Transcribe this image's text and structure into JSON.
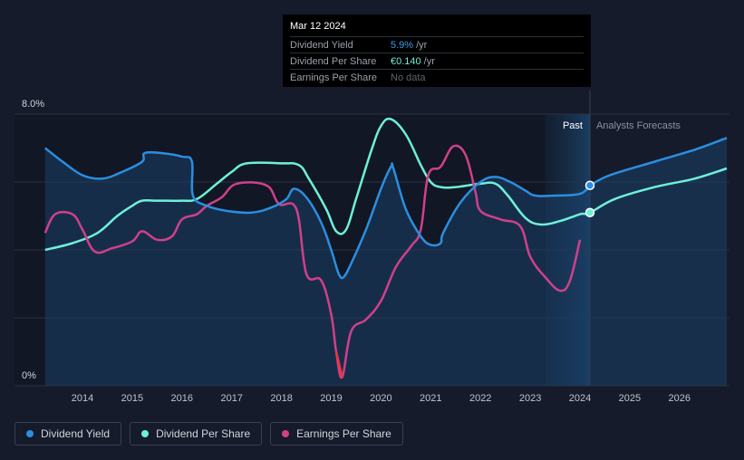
{
  "tooltip": {
    "date": "Mar 12 2024",
    "rows": [
      {
        "label": "Dividend Yield",
        "value": "5.9%",
        "unit": "/yr"
      },
      {
        "label": "Dividend Per Share",
        "value": "€0.140",
        "unit": "/yr"
      },
      {
        "label": "Earnings Per Share",
        "value": "No data",
        "unit": ""
      }
    ]
  },
  "legend": [
    {
      "label": "Dividend Yield",
      "color": "#2b8ee0"
    },
    {
      "label": "Dividend Per Share",
      "color": "#6ef0d8"
    },
    {
      "label": "Earnings Per Share",
      "color": "#d0408a"
    }
  ],
  "chart_data": {
    "type": "line",
    "y_axis": {
      "labels": [
        "8.0%",
        "0%"
      ],
      "range": [
        0,
        8
      ],
      "unit": "%"
    },
    "x_axis": {
      "ticks": [
        "2014",
        "2015",
        "2016",
        "2017",
        "2018",
        "2019",
        "2020",
        "2021",
        "2022",
        "2023",
        "2024",
        "2025",
        "2026"
      ],
      "range": [
        2013.2,
        2026.95
      ]
    },
    "regions": {
      "past_label": "Past",
      "forecast_label": "Analysts Forecasts",
      "divider_x": 2024.2
    },
    "grid": true,
    "series": [
      {
        "name": "Dividend Yield",
        "color": "#2b8ee0",
        "points": [
          [
            2013.25,
            7.0
          ],
          [
            2013.6,
            6.6
          ],
          [
            2014.0,
            6.2
          ],
          [
            2014.4,
            6.1
          ],
          [
            2014.8,
            6.3
          ],
          [
            2015.2,
            6.6
          ],
          [
            2015.25,
            6.85
          ],
          [
            2015.6,
            6.85
          ],
          [
            2016.0,
            6.75
          ],
          [
            2016.2,
            6.6
          ],
          [
            2016.22,
            5.6
          ],
          [
            2016.5,
            5.3
          ],
          [
            2016.9,
            5.15
          ],
          [
            2017.4,
            5.1
          ],
          [
            2017.8,
            5.25
          ],
          [
            2018.1,
            5.5
          ],
          [
            2018.25,
            5.8
          ],
          [
            2018.5,
            5.55
          ],
          [
            2018.8,
            4.8
          ],
          [
            2019.0,
            4.0
          ],
          [
            2019.15,
            3.3
          ],
          [
            2019.25,
            3.2
          ],
          [
            2019.4,
            3.6
          ],
          [
            2019.7,
            4.6
          ],
          [
            2020.0,
            5.8
          ],
          [
            2020.2,
            6.45
          ],
          [
            2020.25,
            6.4
          ],
          [
            2020.5,
            5.2
          ],
          [
            2020.8,
            4.4
          ],
          [
            2021.0,
            4.15
          ],
          [
            2021.2,
            4.2
          ],
          [
            2021.25,
            4.5
          ],
          [
            2021.6,
            5.4
          ],
          [
            2022.0,
            6.0
          ],
          [
            2022.3,
            6.15
          ],
          [
            2022.6,
            6.0
          ],
          [
            2022.9,
            5.75
          ],
          [
            2023.1,
            5.6
          ],
          [
            2023.5,
            5.6
          ],
          [
            2024.0,
            5.65
          ],
          [
            2024.2,
            5.9
          ]
        ]
      },
      {
        "name": "Dividend Per Share",
        "color": "#6ef0d8",
        "points": [
          [
            2013.25,
            4.0
          ],
          [
            2013.8,
            4.2
          ],
          [
            2014.3,
            4.5
          ],
          [
            2014.7,
            5.0
          ],
          [
            2015.0,
            5.3
          ],
          [
            2015.2,
            5.45
          ],
          [
            2015.5,
            5.45
          ],
          [
            2016.0,
            5.45
          ],
          [
            2016.3,
            5.5
          ],
          [
            2016.7,
            5.95
          ],
          [
            2017.0,
            6.3
          ],
          [
            2017.3,
            6.55
          ],
          [
            2018.0,
            6.55
          ],
          [
            2018.35,
            6.5
          ],
          [
            2018.55,
            6.1
          ],
          [
            2018.9,
            5.2
          ],
          [
            2019.1,
            4.55
          ],
          [
            2019.3,
            4.6
          ],
          [
            2019.5,
            5.5
          ],
          [
            2019.8,
            6.9
          ],
          [
            2020.0,
            7.65
          ],
          [
            2020.2,
            7.85
          ],
          [
            2020.5,
            7.4
          ],
          [
            2020.8,
            6.5
          ],
          [
            2021.0,
            6.0
          ],
          [
            2021.2,
            5.85
          ],
          [
            2021.5,
            5.85
          ],
          [
            2022.0,
            5.95
          ],
          [
            2022.3,
            5.95
          ],
          [
            2022.55,
            5.6
          ],
          [
            2022.9,
            4.95
          ],
          [
            2023.2,
            4.75
          ],
          [
            2023.6,
            4.85
          ],
          [
            2024.0,
            5.05
          ],
          [
            2024.2,
            5.1
          ],
          [
            2024.7,
            5.5
          ],
          [
            2025.5,
            5.85
          ],
          [
            2026.3,
            6.1
          ],
          [
            2026.95,
            6.4
          ]
        ]
      },
      {
        "name": "Earnings Per Share",
        "color": "#d0408a",
        "points": [
          [
            2013.25,
            4.5
          ],
          [
            2013.45,
            5.05
          ],
          [
            2013.8,
            5.05
          ],
          [
            2014.0,
            4.6
          ],
          [
            2014.25,
            3.95
          ],
          [
            2014.6,
            4.05
          ],
          [
            2015.0,
            4.25
          ],
          [
            2015.2,
            4.55
          ],
          [
            2015.5,
            4.3
          ],
          [
            2015.8,
            4.4
          ],
          [
            2016.0,
            4.9
          ],
          [
            2016.3,
            5.05
          ],
          [
            2016.5,
            5.3
          ],
          [
            2016.8,
            5.55
          ],
          [
            2017.1,
            5.95
          ],
          [
            2017.7,
            5.9
          ],
          [
            2017.95,
            5.35
          ],
          [
            2018.3,
            5.2
          ],
          [
            2018.5,
            3.3
          ],
          [
            2018.8,
            3.1
          ],
          [
            2019.0,
            2.1
          ],
          [
            2019.1,
            1.0
          ],
          [
            2019.22,
            0.25
          ],
          [
            2019.4,
            1.6
          ],
          [
            2019.7,
            1.95
          ],
          [
            2020.0,
            2.5
          ],
          [
            2020.3,
            3.5
          ],
          [
            2020.6,
            4.1
          ],
          [
            2020.8,
            4.6
          ],
          [
            2020.95,
            6.2
          ],
          [
            2021.2,
            6.45
          ],
          [
            2021.45,
            7.05
          ],
          [
            2021.7,
            6.8
          ],
          [
            2021.9,
            5.7
          ],
          [
            2022.0,
            5.15
          ],
          [
            2022.4,
            4.9
          ],
          [
            2022.8,
            4.7
          ],
          [
            2023.0,
            3.8
          ],
          [
            2023.3,
            3.2
          ],
          [
            2023.6,
            2.8
          ],
          [
            2023.8,
            3.1
          ],
          [
            2024.0,
            4.3
          ]
        ]
      }
    ],
    "forecast": {
      "Dividend Yield": [
        [
          2024.2,
          5.9
        ],
        [
          2024.6,
          6.2
        ],
        [
          2025.5,
          6.6
        ],
        [
          2026.3,
          6.95
        ],
        [
          2026.95,
          7.3
        ]
      ]
    },
    "highlight": {
      "x": 2024.2,
      "points": [
        {
          "series": "Dividend Yield",
          "y": 5.9
        },
        {
          "series": "Dividend Per Share",
          "y": 5.1
        }
      ]
    }
  }
}
